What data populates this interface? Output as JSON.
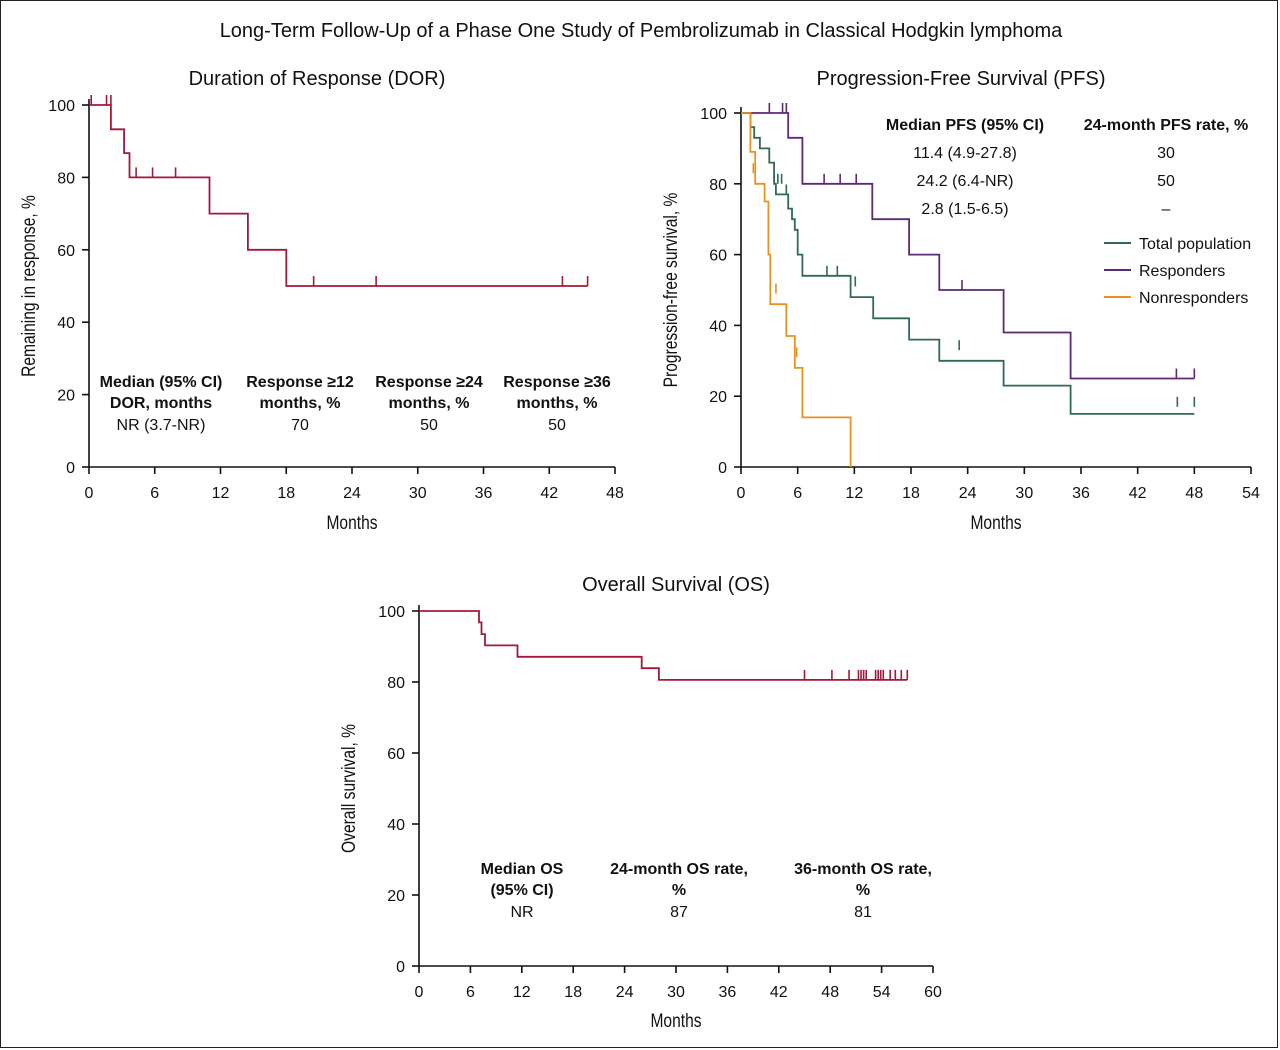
{
  "figure_title": "Long-Term Follow-Up of a Phase One Study of Pembrolizumab in Classical Hodgkin lymphoma",
  "chart_data": [
    {
      "id": "dor",
      "type": "line",
      "title": "Duration of Response (DOR)",
      "xlabel": "Months",
      "ylabel": "Remaining in response, %",
      "xlim": [
        0,
        48
      ],
      "ylim": [
        0,
        100
      ],
      "xticks": [
        0,
        6,
        12,
        18,
        24,
        30,
        36,
        42,
        48
      ],
      "yticks": [
        0,
        20,
        40,
        60,
        80,
        100
      ],
      "series": [
        {
          "name": "DOR",
          "color": "#a3193a",
          "steps": [
            [
              0,
              100
            ],
            [
              2,
              100
            ],
            [
              2,
              93.3
            ],
            [
              3.2,
              93.3
            ],
            [
              3.2,
              86.7
            ],
            [
              3.7,
              86.7
            ],
            [
              3.7,
              80
            ],
            [
              11,
              80
            ],
            [
              11,
              70
            ],
            [
              14.5,
              70
            ],
            [
              14.5,
              60
            ],
            [
              18,
              60
            ],
            [
              18,
              50
            ],
            [
              45.5,
              50
            ]
          ],
          "censor": [
            [
              0.2,
              100
            ],
            [
              1.6,
              100
            ],
            [
              2.0,
              100
            ],
            [
              4.3,
              80
            ],
            [
              5.8,
              80
            ],
            [
              7.9,
              80
            ],
            [
              20.5,
              50
            ],
            [
              26.2,
              50
            ],
            [
              43.2,
              50
            ],
            [
              45.5,
              50
            ]
          ]
        }
      ],
      "table": {
        "headers": [
          [
            "Median (95% CI)",
            "DOR, months"
          ],
          [
            "Response ≥12",
            "months, %"
          ],
          [
            "Response ≥24",
            "months, %"
          ],
          [
            "Response ≥36",
            "months, %"
          ]
        ],
        "rows": [
          [
            "NR (3.7-NR)",
            "70",
            "50",
            "50"
          ]
        ]
      }
    },
    {
      "id": "pfs",
      "type": "line",
      "title": "Progression-Free Survival (PFS)",
      "xlabel": "Months",
      "ylabel": "Progression-free survival, %",
      "xlim": [
        0,
        54
      ],
      "ylim": [
        0,
        100
      ],
      "xticks": [
        0,
        6,
        12,
        18,
        24,
        30,
        36,
        42,
        48,
        54
      ],
      "yticks": [
        0,
        20,
        40,
        60,
        80,
        100
      ],
      "series": [
        {
          "name": "Total population",
          "color": "#2e6b4f",
          "steps": [
            [
              0,
              100
            ],
            [
              1,
              100
            ],
            [
              1,
              96
            ],
            [
              1.4,
              96
            ],
            [
              1.4,
              93
            ],
            [
              2,
              93
            ],
            [
              2,
              90
            ],
            [
              3,
              90
            ],
            [
              3,
              86
            ],
            [
              3.5,
              86
            ],
            [
              3.5,
              80
            ],
            [
              3.7,
              80
            ],
            [
              3.7,
              77
            ],
            [
              5,
              77
            ],
            [
              5,
              73
            ],
            [
              5.4,
              73
            ],
            [
              5.4,
              70
            ],
            [
              5.7,
              70
            ],
            [
              5.7,
              67
            ],
            [
              6,
              67
            ],
            [
              6,
              60
            ],
            [
              6.5,
              60
            ],
            [
              6.5,
              54
            ],
            [
              11.6,
              54
            ],
            [
              11.6,
              48
            ],
            [
              14,
              48
            ],
            [
              14,
              42
            ],
            [
              17.8,
              42
            ],
            [
              17.8,
              36
            ],
            [
              21,
              36
            ],
            [
              21,
              30
            ],
            [
              27.8,
              30
            ],
            [
              27.8,
              23
            ],
            [
              34.9,
              23
            ],
            [
              34.9,
              15
            ],
            [
              48,
              15
            ]
          ],
          "censor": [
            [
              3.9,
              80
            ],
            [
              4.3,
              80
            ],
            [
              4.8,
              77
            ],
            [
              9.1,
              54
            ],
            [
              10.2,
              54
            ],
            [
              12.1,
              51
            ],
            [
              23.1,
              33
            ],
            [
              46.2,
              17
            ],
            [
              48,
              17
            ]
          ]
        },
        {
          "name": "Responders",
          "color": "#5b2a73",
          "steps": [
            [
              0,
              100
            ],
            [
              5,
              100
            ],
            [
              5,
              93
            ],
            [
              6.5,
              93
            ],
            [
              6.5,
              80
            ],
            [
              13.9,
              80
            ],
            [
              13.9,
              70
            ],
            [
              17.8,
              70
            ],
            [
              17.8,
              60
            ],
            [
              21,
              60
            ],
            [
              21,
              50
            ],
            [
              27.8,
              50
            ],
            [
              27.8,
              38
            ],
            [
              34.9,
              38
            ],
            [
              34.9,
              25
            ],
            [
              48,
              25
            ]
          ],
          "censor": [
            [
              3,
              100
            ],
            [
              4.4,
              100
            ],
            [
              4.8,
              100
            ],
            [
              8.8,
              80
            ],
            [
              10.5,
              80
            ],
            [
              12.2,
              80
            ],
            [
              23.4,
              50
            ],
            [
              46.1,
              25
            ],
            [
              48,
              25
            ]
          ]
        },
        {
          "name": "Nonresponders",
          "color": "#e89320",
          "steps": [
            [
              0,
              100
            ],
            [
              1,
              100
            ],
            [
              1,
              89
            ],
            [
              1.5,
              89
            ],
            [
              1.5,
              80
            ],
            [
              2.5,
              80
            ],
            [
              2.5,
              75
            ],
            [
              2.9,
              75
            ],
            [
              2.9,
              60
            ],
            [
              3.1,
              60
            ],
            [
              3.1,
              46
            ],
            [
              4.8,
              46
            ],
            [
              4.8,
              37
            ],
            [
              5.7,
              37
            ],
            [
              5.7,
              28
            ],
            [
              6.5,
              28
            ],
            [
              6.5,
              14
            ],
            [
              11.6,
              14
            ],
            [
              11.6,
              0
            ]
          ],
          "censor": [
            [
              1.3,
              83
            ],
            [
              3.7,
              49
            ],
            [
              5.9,
              31
            ]
          ]
        }
      ],
      "legend": [
        "Total population",
        "Responders",
        "Nonresponders"
      ],
      "table": {
        "headers": [
          "Median PFS (95% CI)",
          "24-month PFS rate, %"
        ],
        "rows": [
          [
            "11.4 (4.9-27.8)",
            "30"
          ],
          [
            "24.2 (6.4-NR)",
            "50"
          ],
          [
            "2.8 (1.5-6.5)",
            "–"
          ]
        ]
      }
    },
    {
      "id": "os",
      "type": "line",
      "title": "Overall Survival (OS)",
      "xlabel": "Months",
      "ylabel": "Overall survival, %",
      "xlim": [
        0,
        60
      ],
      "ylim": [
        0,
        100
      ],
      "xticks": [
        0,
        6,
        12,
        18,
        24,
        30,
        36,
        42,
        48,
        54,
        60
      ],
      "yticks": [
        0,
        20,
        40,
        60,
        80,
        100
      ],
      "series": [
        {
          "name": "OS",
          "color": "#a3193a",
          "steps": [
            [
              0,
              100
            ],
            [
              7,
              100
            ],
            [
              7,
              96.8
            ],
            [
              7.3,
              96.8
            ],
            [
              7.3,
              93.5
            ],
            [
              7.7,
              93.5
            ],
            [
              7.7,
              90.3
            ],
            [
              11.5,
              90.3
            ],
            [
              11.5,
              87.1
            ],
            [
              26,
              87.1
            ],
            [
              26,
              83.9
            ],
            [
              28,
              83.9
            ],
            [
              28,
              80.6
            ],
            [
              57,
              80.6
            ]
          ],
          "censor": [
            [
              45,
              80.6
            ],
            [
              48.2,
              80.6
            ],
            [
              50.2,
              80.6
            ],
            [
              51.3,
              80.6
            ],
            [
              51.6,
              80.6
            ],
            [
              51.9,
              80.6
            ],
            [
              52.2,
              80.6
            ],
            [
              53.3,
              80.6
            ],
            [
              53.6,
              80.6
            ],
            [
              53.9,
              80.6
            ],
            [
              54.2,
              80.6
            ],
            [
              55,
              80.6
            ],
            [
              55.6,
              80.6
            ],
            [
              56.3,
              80.6
            ],
            [
              57,
              80.6
            ]
          ]
        }
      ],
      "table": {
        "headers": [
          [
            "Median OS",
            "(95% CI)"
          ],
          [
            "24-month OS rate,",
            "%"
          ],
          [
            "36-month OS rate,",
            "%"
          ]
        ],
        "rows": [
          [
            "NR",
            "87",
            "81"
          ]
        ]
      }
    }
  ]
}
